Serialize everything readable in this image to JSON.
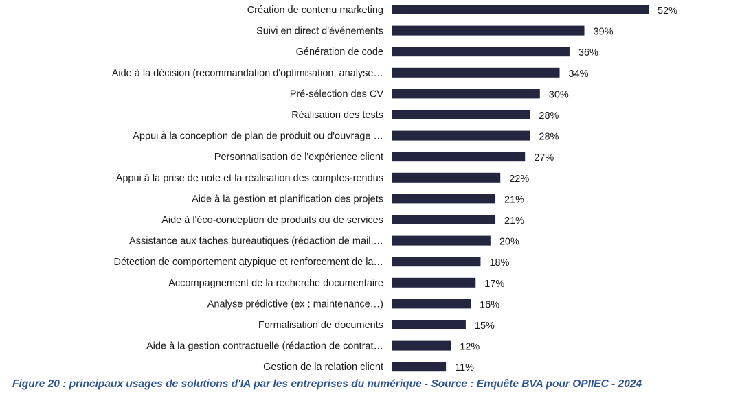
{
  "chart_data": {
    "type": "bar",
    "orientation": "horizontal",
    "categories": [
      "Création de contenu marketing",
      "Suivi en direct d'événements",
      "Génération de code",
      "Aide à la décision (recommandation  d'optimisation, analyse…",
      "Pré-sélection des CV",
      "Réalisation des tests",
      "Appui à la conception de plan de produit ou d'ouvrage …",
      "Personnalisation de l'expérience client",
      "Appui à la prise de note et la réalisation des comptes-rendus",
      "Aide à la gestion et planification des projets",
      "Aide à l'éco-conception de produits ou de services",
      "Assistance aux taches bureautiques  (rédaction de mail,…",
      "Détection de comportement atypique et renforcement de la…",
      "Accompagnement de la recherche documentaire",
      "Analyse prédictive  (ex : maintenance…)",
      "Formalisation de documents",
      "Aide à la gestion contractuelle  (rédaction de contrat…",
      "Gestion de la relation client"
    ],
    "values": [
      52,
      39,
      36,
      34,
      30,
      28,
      28,
      27,
      22,
      21,
      21,
      20,
      18,
      17,
      16,
      15,
      12,
      11
    ],
    "value_labels": [
      "52%",
      "39%",
      "36%",
      "34%",
      "30%",
      "28%",
      "28%",
      "27%",
      "22%",
      "21%",
      "21%",
      "20%",
      "18%",
      "17%",
      "16%",
      "15%",
      "12%",
      "11%"
    ],
    "unit": "%",
    "xlim": [
      0,
      52
    ],
    "grid": false,
    "legend": "none",
    "bar_color": "#24253f",
    "title": "",
    "xlabel": "",
    "ylabel": ""
  },
  "caption": "Figure 20 : principaux usages de solutions d'IA par les entreprises du numérique - Source : Enquête BVA pour OPIIEC - 2024",
  "colors": {
    "bar": "#24253f",
    "caption": "#2e5597",
    "text": "#1a1a1a"
  }
}
